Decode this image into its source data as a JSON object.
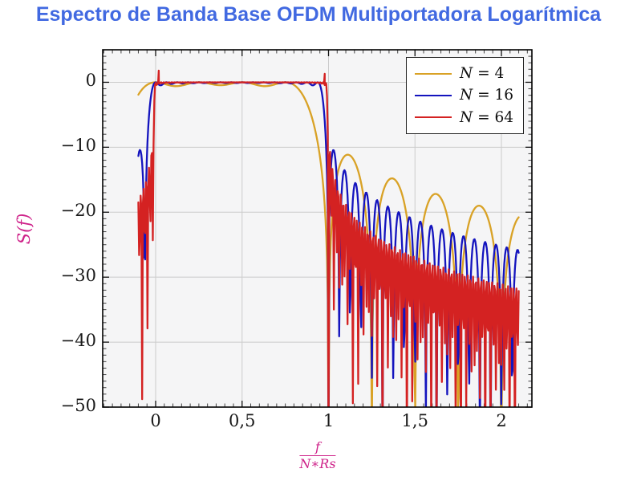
{
  "title": "Espectro de Banda Base OFDM Multiportadora Logarítmica",
  "title_color": "#4169E1",
  "chart_data": {
    "type": "line",
    "title": "Espectro de Banda Base OFDM Multiportadora Logarítmica",
    "ylabel": "S(f)",
    "xlabel_num": "f",
    "xlabel_den": "N∗Rs",
    "axis_label_color": "#CE2189",
    "plot_bg": "#F5F5F6",
    "grid_color": "#CBCBCB",
    "frame_color": "#000000",
    "grid": true,
    "legend_position": "top-right",
    "xlim": [
      -0.306,
      2.176
    ],
    "ylim": [
      -50,
      5
    ],
    "x_ticks": [
      {
        "v": 0,
        "label": "0"
      },
      {
        "v": 0.5,
        "label": "0,5"
      },
      {
        "v": 1,
        "label": "1"
      },
      {
        "v": 1.5,
        "label": "1,5"
      },
      {
        "v": 2,
        "label": "2"
      }
    ],
    "y_ticks": [
      {
        "v": 0,
        "label": "0"
      },
      {
        "v": -10,
        "label": "−10"
      },
      {
        "v": -20,
        "label": "−20"
      },
      {
        "v": -30,
        "label": "−30"
      },
      {
        "v": -40,
        "label": "−40"
      },
      {
        "v": -50,
        "label": "−50"
      }
    ],
    "x_minor_step": 0.05,
    "y_minor_step": 1,
    "model": "S_dB(x) = 10*log10( sum_{k=0..N-1} sinc^2(N*x - k) ),  x = f/(N*Rs), flat top at 0 dB, nulls at x = m/N outside the band",
    "sample_domain": [
      -0.1,
      2.1
    ],
    "sample_count": 501,
    "flat_top_db": 0,
    "series": [
      {
        "var": "N",
        "value": "4",
        "label": "N = 4",
        "N": 4,
        "color": "#D9A226",
        "key_points": [
          [
            -0.1,
            -2.4
          ],
          [
            0,
            0
          ],
          [
            0.5,
            -0.2
          ],
          [
            0.875,
            -3.2
          ],
          [
            1.0,
            -50
          ],
          [
            1.125,
            -11.3
          ],
          [
            1.25,
            -50
          ],
          [
            1.375,
            -14.8
          ],
          [
            1.625,
            -17.2
          ],
          [
            1.875,
            -19.0
          ],
          [
            2.1,
            -20.5
          ]
        ]
      },
      {
        "var": "N",
        "value": "16",
        "label": "N = 16",
        "N": 16,
        "color": "#1414BE",
        "key_points": [
          [
            -0.1,
            -11.4
          ],
          [
            0,
            0
          ],
          [
            0.5,
            0
          ],
          [
            0.969,
            -3.2
          ],
          [
            1.0,
            -50
          ],
          [
            1.031,
            -10.8
          ],
          [
            1.25,
            -17.5
          ],
          [
            1.5,
            -19.3
          ],
          [
            1.75,
            -22.0
          ],
          [
            2.0,
            -24.7
          ]
        ]
      },
      {
        "var": "N",
        "value": "64",
        "label": "N = 64",
        "N": 64,
        "color": "#D42222",
        "overshoots": [
          [
            0.018,
            1.8
          ],
          [
            0.978,
            1.3
          ]
        ],
        "key_points": [
          [
            -0.1,
            -21.0
          ],
          [
            0.018,
            1.8
          ],
          [
            0,
            0
          ],
          [
            0.5,
            0
          ],
          [
            0.992,
            -3.2
          ],
          [
            1.0,
            -50
          ],
          [
            1.008,
            -10.8
          ],
          [
            1.25,
            -22.0
          ],
          [
            1.5,
            -25.0
          ],
          [
            1.75,
            -28.0
          ],
          [
            2.0,
            -31.0
          ]
        ]
      }
    ]
  }
}
